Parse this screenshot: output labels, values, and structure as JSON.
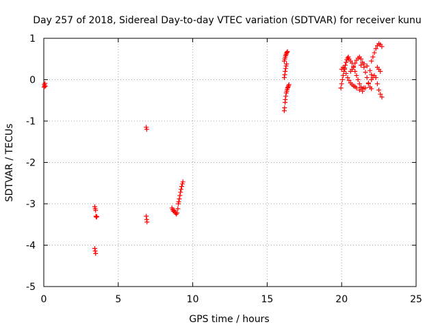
{
  "chart_data": {
    "type": "scatter",
    "title": "Day 257 of 2018, Sidereal Day-to-day VTEC variation (SDTVAR) for receiver kunu",
    "xlabel": "GPS time / hours",
    "ylabel": "SDTVAR / TECUs",
    "xlim": [
      0,
      25
    ],
    "ylim": [
      -5,
      1
    ],
    "x_ticks": [
      0,
      5,
      10,
      15,
      20,
      25
    ],
    "y_ticks": [
      -5,
      -4,
      -3,
      -2,
      -1,
      0,
      1
    ],
    "x_tick_labels": [
      "0",
      "5",
      "10",
      "15",
      "20",
      "25"
    ],
    "y_tick_labels": [
      "-5",
      "-4",
      "-3",
      "-2",
      "-1",
      "0",
      "1"
    ],
    "grid": true,
    "grid_style": "dotted",
    "marker": "plus",
    "color": "#ff0000",
    "points": [
      [
        0.02,
        -0.18
      ],
      [
        0.04,
        -0.12
      ],
      [
        0.06,
        -0.15
      ],
      [
        0.08,
        -0.09
      ],
      [
        0.1,
        -0.16
      ],
      [
        3.42,
        -3.07
      ],
      [
        3.45,
        -3.12
      ],
      [
        3.48,
        -3.16
      ],
      [
        3.5,
        -3.3
      ],
      [
        3.53,
        -3.32
      ],
      [
        3.56,
        -3.31
      ],
      [
        3.42,
        -4.08
      ],
      [
        3.45,
        -4.14
      ],
      [
        3.48,
        -4.2
      ],
      [
        6.88,
        -1.15
      ],
      [
        6.91,
        -1.2
      ],
      [
        6.88,
        -3.3
      ],
      [
        6.91,
        -3.38
      ],
      [
        6.93,
        -3.44
      ],
      [
        8.6,
        -3.1
      ],
      [
        8.65,
        -3.14
      ],
      [
        8.7,
        -3.18
      ],
      [
        8.75,
        -3.16
      ],
      [
        8.8,
        -3.2
      ],
      [
        8.85,
        -3.22
      ],
      [
        8.9,
        -3.25
      ],
      [
        8.95,
        -3.22
      ],
      [
        9.0,
        -3.12
      ],
      [
        9.03,
        -3.0
      ],
      [
        9.06,
        -2.95
      ],
      [
        9.1,
        -2.88
      ],
      [
        9.14,
        -2.8
      ],
      [
        9.18,
        -2.72
      ],
      [
        9.22,
        -2.65
      ],
      [
        9.26,
        -2.58
      ],
      [
        9.3,
        -2.52
      ],
      [
        9.34,
        -2.47
      ],
      [
        16.15,
        -0.75
      ],
      [
        16.17,
        -0.68
      ],
      [
        16.2,
        -0.55
      ],
      [
        16.22,
        -0.48
      ],
      [
        16.25,
        -0.4
      ],
      [
        16.28,
        -0.32
      ],
      [
        16.31,
        -0.28
      ],
      [
        16.34,
        -0.24
      ],
      [
        16.37,
        -0.2
      ],
      [
        16.4,
        -0.18
      ],
      [
        16.43,
        -0.15
      ],
      [
        16.46,
        -0.12
      ],
      [
        16.15,
        0.05
      ],
      [
        16.18,
        0.12
      ],
      [
        16.21,
        0.2
      ],
      [
        16.24,
        0.27
      ],
      [
        16.27,
        0.33
      ],
      [
        16.3,
        0.38
      ],
      [
        16.15,
        0.45
      ],
      [
        16.18,
        0.5
      ],
      [
        16.21,
        0.54
      ],
      [
        16.24,
        0.58
      ],
      [
        16.27,
        0.61
      ],
      [
        16.3,
        0.64
      ],
      [
        16.33,
        0.66
      ],
      [
        16.36,
        0.68
      ],
      [
        19.95,
        -0.2
      ],
      [
        20.0,
        -0.1
      ],
      [
        20.05,
        0.0
      ],
      [
        20.1,
        0.1
      ],
      [
        20.15,
        0.2
      ],
      [
        20.2,
        0.28
      ],
      [
        20.25,
        0.35
      ],
      [
        20.3,
        0.42
      ],
      [
        20.35,
        0.48
      ],
      [
        20.4,
        0.52
      ],
      [
        20.45,
        0.55
      ],
      [
        20.0,
        0.25
      ],
      [
        20.1,
        0.3
      ],
      [
        20.2,
        0.25
      ],
      [
        20.3,
        0.15
      ],
      [
        20.4,
        0.05
      ],
      [
        20.5,
        -0.02
      ],
      [
        20.6,
        -0.08
      ],
      [
        20.7,
        -0.12
      ],
      [
        20.8,
        -0.15
      ],
      [
        20.9,
        -0.17
      ],
      [
        20.5,
        0.5
      ],
      [
        20.6,
        0.45
      ],
      [
        20.7,
        0.4
      ],
      [
        20.8,
        0.3
      ],
      [
        20.9,
        0.2
      ],
      [
        21.0,
        0.1
      ],
      [
        21.1,
        0.0
      ],
      [
        21.2,
        -0.1
      ],
      [
        21.3,
        -0.18
      ],
      [
        21.4,
        -0.22
      ],
      [
        21.5,
        -0.2
      ],
      [
        20.6,
        0.2
      ],
      [
        20.7,
        0.25
      ],
      [
        20.8,
        0.32
      ],
      [
        20.9,
        0.4
      ],
      [
        21.0,
        0.47
      ],
      [
        21.1,
        0.52
      ],
      [
        21.2,
        0.55
      ],
      [
        21.3,
        0.5
      ],
      [
        21.4,
        0.42
      ],
      [
        21.5,
        0.3
      ],
      [
        21.6,
        0.18
      ],
      [
        21.7,
        0.05
      ],
      [
        21.8,
        -0.08
      ],
      [
        21.9,
        -0.18
      ],
      [
        22.0,
        -0.22
      ],
      [
        21.0,
        -0.2
      ],
      [
        21.2,
        -0.25
      ],
      [
        21.4,
        -0.28
      ],
      [
        21.6,
        -0.2
      ],
      [
        21.8,
        -0.1
      ],
      [
        22.0,
        0.0
      ],
      [
        21.3,
        0.35
      ],
      [
        21.5,
        0.38
      ],
      [
        21.7,
        0.33
      ],
      [
        21.9,
        0.22
      ],
      [
        22.0,
        0.12
      ],
      [
        22.1,
        0.05
      ],
      [
        22.0,
        0.45
      ],
      [
        22.1,
        0.55
      ],
      [
        22.2,
        0.65
      ],
      [
        22.3,
        0.75
      ],
      [
        22.4,
        0.82
      ],
      [
        22.5,
        0.87
      ],
      [
        22.6,
        0.85
      ],
      [
        22.7,
        0.8
      ],
      [
        22.2,
        0.1
      ],
      [
        22.3,
        0.05
      ],
      [
        22.4,
        -0.1
      ],
      [
        22.5,
        -0.25
      ],
      [
        22.6,
        -0.35
      ],
      [
        22.7,
        -0.42
      ],
      [
        22.4,
        0.3
      ],
      [
        22.5,
        0.25
      ],
      [
        22.6,
        0.2
      ]
    ]
  }
}
